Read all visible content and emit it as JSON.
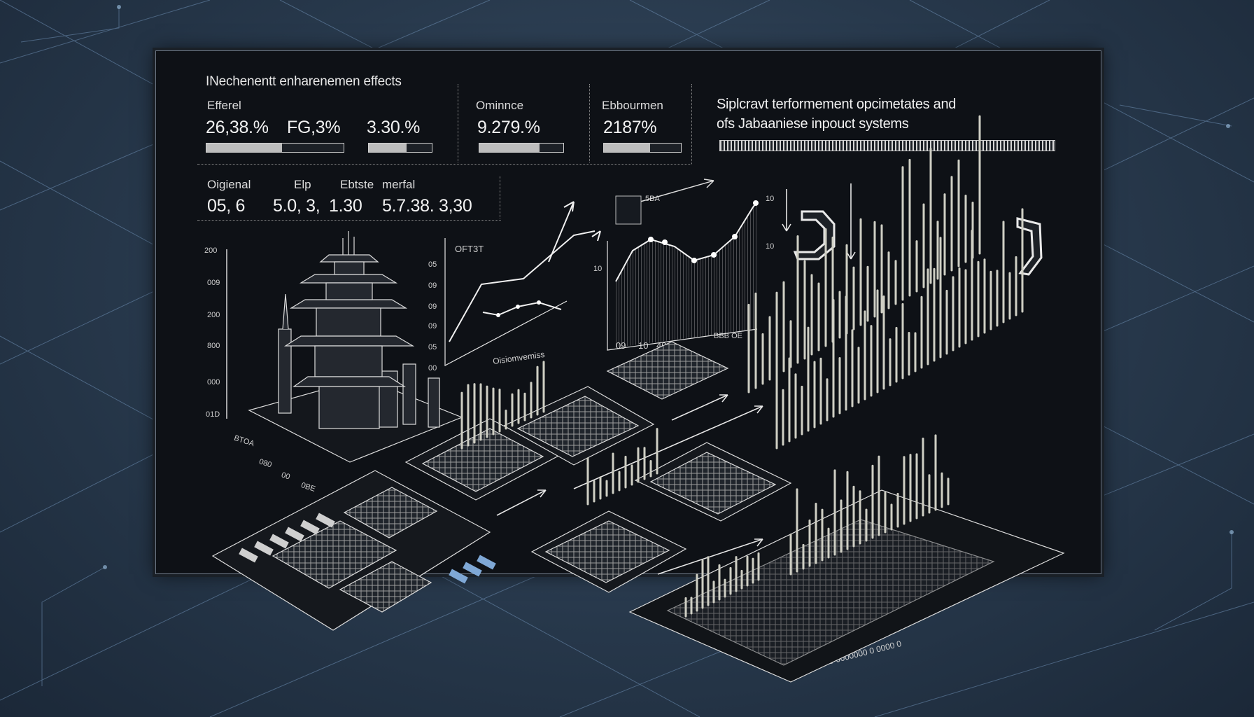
{
  "header": {
    "title": "INechenentt enharenemen effects",
    "metrics": [
      {
        "label": "Efferel",
        "values": [
          "26,38.%",
          "FG,3%",
          "3.30.%"
        ],
        "progress": 0.55
      },
      {
        "label": "Ominnce",
        "values": [
          "9.279.%"
        ],
        "progress": 0.72
      },
      {
        "label": "Ebbourmen",
        "values": [
          "2187%"
        ],
        "progress": 0.6
      }
    ],
    "subtitle_line1": "Siplcravt terformement opcimetates and",
    "subtitle_line2": "ofs Jabaaniese inpouct  systems",
    "subtitle_progress": 1.0
  },
  "table": {
    "headers": [
      "Oigienal",
      "Elp",
      "Ebtste",
      "merfal"
    ],
    "values": [
      "05, 6",
      "5.0, 3,",
      "1.30",
      "5.7.38. 3,30"
    ]
  },
  "charts": {
    "left_axis_ticks": [
      "200",
      "009",
      "200",
      "800",
      "000",
      "01D"
    ],
    "mid_label": "OFT3T",
    "mid_axis_ticks": [
      "05",
      "09",
      "09",
      "09",
      "05",
      "00"
    ],
    "mid_footer": "Oisiomvemiss",
    "right_label": "5BA",
    "right_axis_ticks": [
      "10",
      "10",
      "10"
    ],
    "right_footer_ticks": [
      "09",
      "10",
      "40"
    ],
    "right_footer_codes": "BBB OE"
  },
  "stats_labels": [
    "BTOA",
    "080",
    "00",
    "0BE"
  ],
  "footer_strip": "0 0 000 0 0000000 0 0000 0",
  "colors": {
    "panel": "#0e1116",
    "grid": "#5d7fa3",
    "ink": "#e6e6e6",
    "bg": "#27384b"
  },
  "icons": [
    "pagoda-icon",
    "bracket-icon",
    "circuit-board-icon",
    "spike-graph-icon"
  ]
}
